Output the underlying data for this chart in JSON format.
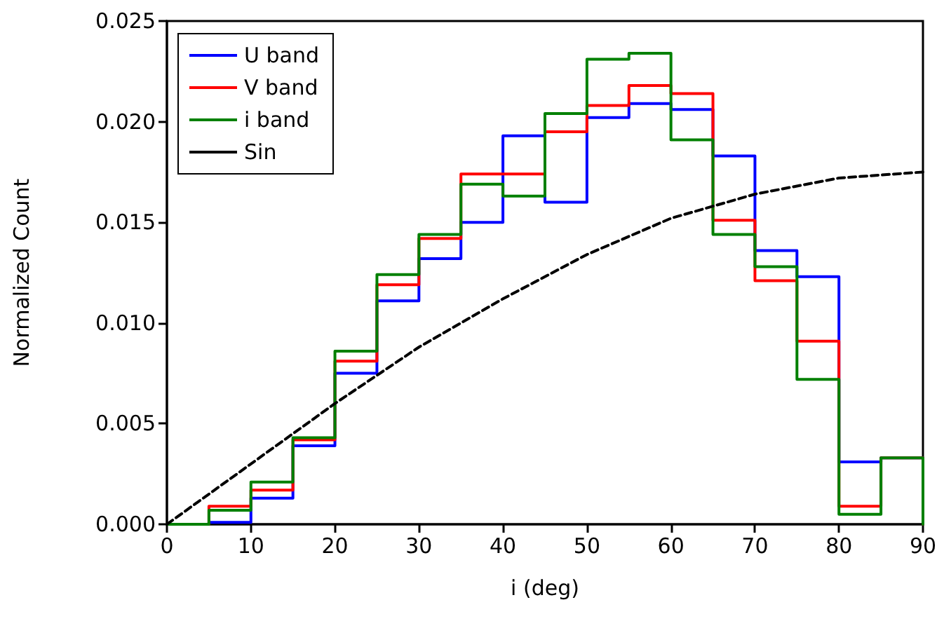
{
  "chart_data": {
    "type": "histogram",
    "xlabel": "i (deg)",
    "ylabel": "Normalized Count",
    "bins": [
      0,
      5,
      10,
      15,
      20,
      25,
      30,
      35,
      40,
      45,
      50,
      55,
      60,
      65,
      70,
      75,
      80,
      85,
      90
    ],
    "series": [
      {
        "name": "U band",
        "color": "#0000ff",
        "values": [
          0,
          0.0001,
          0.0013,
          0.0039,
          0.0075,
          0.0111,
          0.0132,
          0.015,
          0.0193,
          0.016,
          0.0202,
          0.0209,
          0.0206,
          0.0183,
          0.0136,
          0.0123,
          0.0031,
          0.0033
        ]
      },
      {
        "name": "V band",
        "color": "#ff0000",
        "values": [
          0,
          0.0009,
          0.0017,
          0.0042,
          0.0081,
          0.0119,
          0.0142,
          0.0174,
          0.0174,
          0.0195,
          0.0208,
          0.0218,
          0.0214,
          0.0151,
          0.0121,
          0.0091,
          0.0009,
          0.0033
        ]
      },
      {
        "name": "i band",
        "color": "#008000",
        "values": [
          0,
          0.0007,
          0.0021,
          0.0043,
          0.0086,
          0.0124,
          0.0144,
          0.0169,
          0.0163,
          0.0204,
          0.0231,
          0.0234,
          0.0191,
          0.0144,
          0.0128,
          0.0072,
          0.0005,
          0.0033
        ]
      },
      {
        "name": "Sin",
        "type": "line",
        "color": "#000000",
        "line_style": "dashed",
        "x": [
          0,
          10,
          20,
          30,
          40,
          50,
          60,
          70,
          80,
          90
        ],
        "values": [
          0,
          0.003,
          0.006,
          0.0088,
          0.0112,
          0.0134,
          0.0152,
          0.0164,
          0.0172,
          0.0175
        ]
      }
    ],
    "xlim": [
      0,
      90
    ],
    "xticks": [
      0,
      10,
      20,
      30,
      40,
      50,
      60,
      70,
      80,
      90
    ],
    "ylim": [
      0,
      0.025
    ],
    "yticks": [
      {
        "value": 0,
        "label": "0.000"
      },
      {
        "value": 0.005,
        "label": "0.005"
      },
      {
        "value": 0.01,
        "label": "0.010"
      },
      {
        "value": 0.015,
        "label": "0.015"
      },
      {
        "value": 0.02,
        "label": "0.020"
      },
      {
        "value": 0.025,
        "label": "0.025"
      }
    ],
    "legend": "top left",
    "grid": false
  }
}
